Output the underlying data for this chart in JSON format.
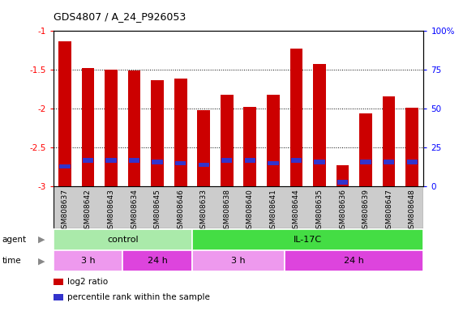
{
  "title": "GDS4807 / A_24_P926053",
  "samples": [
    "GSM808637",
    "GSM808642",
    "GSM808643",
    "GSM808634",
    "GSM808645",
    "GSM808646",
    "GSM808633",
    "GSM808638",
    "GSM808640",
    "GSM808641",
    "GSM808644",
    "GSM808635",
    "GSM808636",
    "GSM808639",
    "GSM808647",
    "GSM808648"
  ],
  "log2_ratio": [
    -1.13,
    -1.47,
    -1.5,
    -1.51,
    -1.63,
    -1.61,
    -2.02,
    -1.82,
    -1.98,
    -1.82,
    -1.22,
    -1.42,
    -2.73,
    -2.06,
    -1.84,
    -1.99
  ],
  "percentile": [
    13,
    17,
    17,
    17,
    16,
    15,
    14,
    17,
    17,
    15,
    17,
    16,
    3,
    16,
    16,
    16
  ],
  "ylim_min": -3,
  "ylim_max": -1,
  "yticks": [
    -1,
    -1.5,
    -2,
    -2.5,
    -3
  ],
  "bar_color": "#cc0000",
  "blue_color": "#3333cc",
  "agent_groups": [
    {
      "label": "control",
      "start": 0,
      "end": 6,
      "color": "#aaeaaa"
    },
    {
      "label": "IL-17C",
      "start": 6,
      "end": 16,
      "color": "#44dd44"
    }
  ],
  "time_groups": [
    {
      "label": "3 h",
      "start": 0,
      "end": 3,
      "color": "#ee99ee"
    },
    {
      "label": "24 h",
      "start": 3,
      "end": 6,
      "color": "#dd44dd"
    },
    {
      "label": "3 h",
      "start": 6,
      "end": 10,
      "color": "#ee99ee"
    },
    {
      "label": "24 h",
      "start": 10,
      "end": 16,
      "color": "#dd44dd"
    }
  ],
  "right_yticks": [
    0,
    25,
    50,
    75,
    100
  ],
  "right_ylabels": [
    "0",
    "25",
    "50",
    "75",
    "100%"
  ],
  "legend_items": [
    {
      "color": "#cc0000",
      "label": "log2 ratio"
    },
    {
      "color": "#3333cc",
      "label": "percentile rank within the sample"
    }
  ]
}
